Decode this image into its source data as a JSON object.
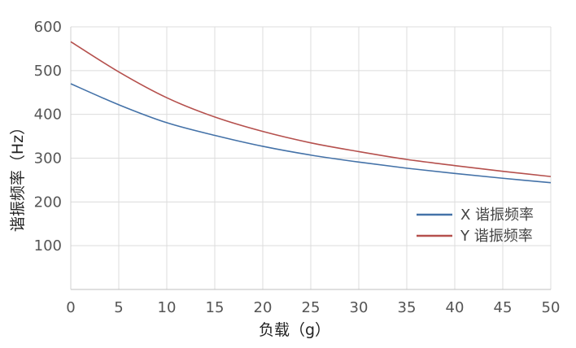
{
  "chart_data": {
    "type": "line",
    "title": "",
    "xlabel": "负载（g）",
    "ylabel": "谐振频率（Hz）",
    "xlim": [
      0,
      50
    ],
    "ylim": [
      0,
      600
    ],
    "x_ticks": [
      "0",
      "5",
      "10",
      "15",
      "20",
      "25",
      "30",
      "35",
      "40",
      "45",
      "50"
    ],
    "y_ticks": [
      "100",
      "200",
      "300",
      "400",
      "500",
      "600"
    ],
    "grid": true,
    "legend_position": "right",
    "x": [
      0,
      5,
      10,
      15,
      20,
      25,
      30,
      35,
      40,
      45,
      50
    ],
    "series": [
      {
        "name": "X 谐振频率",
        "color": "#4472a8",
        "values": [
          470,
          422,
          381,
          352,
          327,
          307,
          291,
          277,
          265,
          254,
          244
        ]
      },
      {
        "name": "Y 谐振频率",
        "color": "#b5504d",
        "values": [
          566,
          497,
          438,
          394,
          361,
          335,
          315,
          297,
          283,
          270,
          258
        ]
      }
    ]
  }
}
